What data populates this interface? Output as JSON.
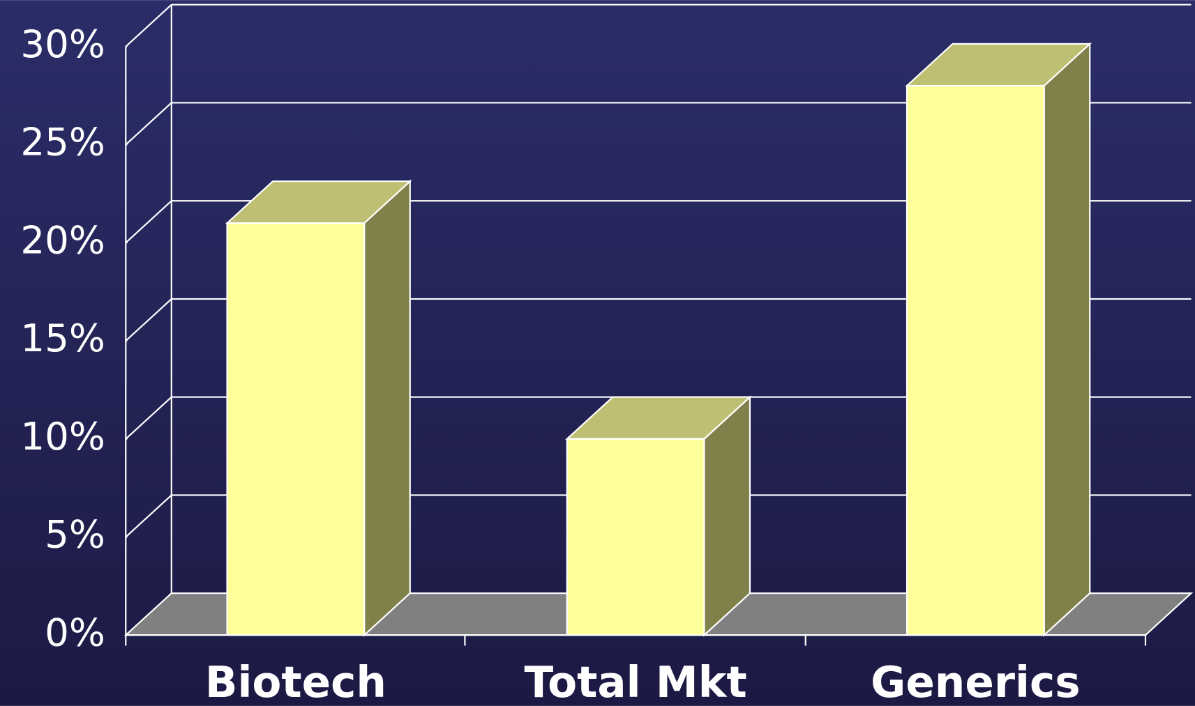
{
  "chart_data": {
    "type": "bar3d",
    "categories": [
      "Biotech",
      "Total Mkt",
      "Generics"
    ],
    "values": [
      21,
      10,
      28
    ],
    "color": "#ffff99",
    "ylim": [
      0,
      30
    ],
    "yticks": [
      {
        "value": 0,
        "label": "0%"
      },
      {
        "value": 5,
        "label": "5%"
      },
      {
        "value": 10,
        "label": "10%"
      },
      {
        "value": 15,
        "label": "15%"
      },
      {
        "value": 20,
        "label": "20%"
      },
      {
        "value": 25,
        "label": "25%"
      },
      {
        "value": 30,
        "label": "30%"
      }
    ],
    "grid": true
  }
}
